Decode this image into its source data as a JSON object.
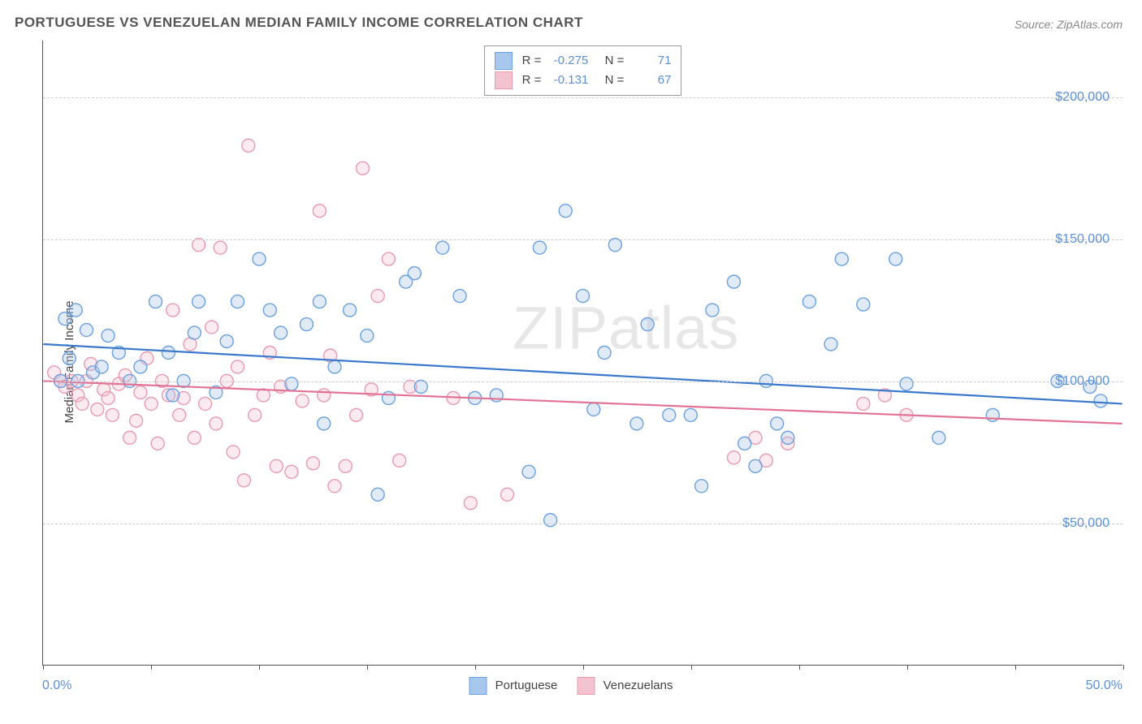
{
  "title": "PORTUGUESE VS VENEZUELAN MEDIAN FAMILY INCOME CORRELATION CHART",
  "source": "Source: ZipAtlas.com",
  "watermark": "ZIPatlas",
  "ylabel": "Median Family Income",
  "chart": {
    "type": "scatter",
    "xlim": [
      0,
      50
    ],
    "ylim": [
      0,
      220000
    ],
    "xmin_label": "0.0%",
    "xmax_label": "50.0%",
    "yticks": [
      50000,
      100000,
      150000,
      200000
    ],
    "ytick_labels": [
      "$50,000",
      "$100,000",
      "$150,000",
      "$200,000"
    ],
    "xtick_positions": [
      0,
      5,
      10,
      15,
      20,
      25,
      30,
      35,
      40,
      45,
      50
    ],
    "grid_color": "#cccccc",
    "background_color": "#ffffff",
    "marker_radius": 8,
    "marker_stroke_width": 1.4,
    "marker_fill_opacity": 0.35,
    "line_width": 2.2,
    "series": [
      {
        "name": "Portuguese",
        "color_stroke": "#6aa0e0",
        "color_fill": "#a8c7ec",
        "line_color": "#3a78cc",
        "R": "-0.275",
        "N": "71",
        "trend": {
          "y_at_xmin": 113000,
          "y_at_xmax": 92000
        },
        "points": [
          [
            1.0,
            122000
          ],
          [
            1.5,
            125000
          ],
          [
            2.0,
            118000
          ],
          [
            1.2,
            108000
          ],
          [
            2.3,
            103000
          ],
          [
            0.8,
            100000
          ],
          [
            1.6,
            100000
          ],
          [
            2.7,
            105000
          ],
          [
            3.0,
            116000
          ],
          [
            3.5,
            110000
          ],
          [
            4.0,
            100000
          ],
          [
            4.5,
            105000
          ],
          [
            5.2,
            128000
          ],
          [
            5.8,
            110000
          ],
          [
            6.0,
            95000
          ],
          [
            6.5,
            100000
          ],
          [
            7.0,
            117000
          ],
          [
            7.2,
            128000
          ],
          [
            8.0,
            96000
          ],
          [
            8.5,
            114000
          ],
          [
            9.0,
            128000
          ],
          [
            10.0,
            143000
          ],
          [
            10.5,
            125000
          ],
          [
            11.0,
            117000
          ],
          [
            11.5,
            99000
          ],
          [
            12.2,
            120000
          ],
          [
            12.8,
            128000
          ],
          [
            13.0,
            85000
          ],
          [
            13.5,
            105000
          ],
          [
            14.2,
            125000
          ],
          [
            15.0,
            116000
          ],
          [
            15.5,
            60000
          ],
          [
            16.0,
            94000
          ],
          [
            16.8,
            135000
          ],
          [
            17.2,
            138000
          ],
          [
            17.5,
            98000
          ],
          [
            18.5,
            147000
          ],
          [
            19.3,
            130000
          ],
          [
            20.0,
            94000
          ],
          [
            21.0,
            95000
          ],
          [
            22.5,
            68000
          ],
          [
            23.0,
            147000
          ],
          [
            23.5,
            51000
          ],
          [
            24.2,
            160000
          ],
          [
            25.0,
            130000
          ],
          [
            25.5,
            90000
          ],
          [
            26.0,
            110000
          ],
          [
            26.5,
            148000
          ],
          [
            27.5,
            85000
          ],
          [
            28.0,
            120000
          ],
          [
            29.0,
            88000
          ],
          [
            30.0,
            88000
          ],
          [
            30.5,
            63000
          ],
          [
            31.0,
            125000
          ],
          [
            32.0,
            135000
          ],
          [
            32.5,
            78000
          ],
          [
            33.0,
            70000
          ],
          [
            33.5,
            100000
          ],
          [
            34.0,
            85000
          ],
          [
            34.5,
            80000
          ],
          [
            35.5,
            128000
          ],
          [
            36.5,
            113000
          ],
          [
            37.0,
            143000
          ],
          [
            38.0,
            127000
          ],
          [
            39.5,
            143000
          ],
          [
            40.0,
            99000
          ],
          [
            41.5,
            80000
          ],
          [
            44.0,
            88000
          ],
          [
            47.0,
            100000
          ],
          [
            48.5,
            98000
          ],
          [
            49.0,
            93000
          ]
        ]
      },
      {
        "name": "Venezuelans",
        "color_stroke": "#e89ab0",
        "color_fill": "#f3c3d0",
        "line_color": "#e27395",
        "R": "-0.131",
        "N": "67",
        "trend": {
          "y_at_xmin": 100000,
          "y_at_xmax": 85000
        },
        "points": [
          [
            0.5,
            103000
          ],
          [
            0.8,
            100000
          ],
          [
            1.0,
            98000
          ],
          [
            1.3,
            100000
          ],
          [
            1.6,
            95000
          ],
          [
            1.8,
            92000
          ],
          [
            2.0,
            100000
          ],
          [
            2.2,
            106000
          ],
          [
            2.5,
            90000
          ],
          [
            2.8,
            97000
          ],
          [
            3.0,
            94000
          ],
          [
            3.2,
            88000
          ],
          [
            3.5,
            99000
          ],
          [
            3.8,
            102000
          ],
          [
            4.0,
            80000
          ],
          [
            4.3,
            86000
          ],
          [
            4.5,
            96000
          ],
          [
            4.8,
            108000
          ],
          [
            5.0,
            92000
          ],
          [
            5.3,
            78000
          ],
          [
            5.5,
            100000
          ],
          [
            5.8,
            95000
          ],
          [
            6.0,
            125000
          ],
          [
            6.3,
            88000
          ],
          [
            6.5,
            94000
          ],
          [
            6.8,
            113000
          ],
          [
            7.0,
            80000
          ],
          [
            7.2,
            148000
          ],
          [
            7.5,
            92000
          ],
          [
            7.8,
            119000
          ],
          [
            8.0,
            85000
          ],
          [
            8.2,
            147000
          ],
          [
            8.5,
            100000
          ],
          [
            8.8,
            75000
          ],
          [
            9.0,
            105000
          ],
          [
            9.3,
            65000
          ],
          [
            9.5,
            183000
          ],
          [
            9.8,
            88000
          ],
          [
            10.2,
            95000
          ],
          [
            10.5,
            110000
          ],
          [
            10.8,
            70000
          ],
          [
            11.0,
            98000
          ],
          [
            11.5,
            68000
          ],
          [
            12.0,
            93000
          ],
          [
            12.5,
            71000
          ],
          [
            12.8,
            160000
          ],
          [
            13.0,
            95000
          ],
          [
            13.3,
            109000
          ],
          [
            13.5,
            63000
          ],
          [
            14.0,
            70000
          ],
          [
            14.5,
            88000
          ],
          [
            14.8,
            175000
          ],
          [
            15.2,
            97000
          ],
          [
            15.5,
            130000
          ],
          [
            16.0,
            143000
          ],
          [
            16.5,
            72000
          ],
          [
            17.0,
            98000
          ],
          [
            19.0,
            94000
          ],
          [
            19.8,
            57000
          ],
          [
            21.5,
            60000
          ],
          [
            32.0,
            73000
          ],
          [
            33.0,
            80000
          ],
          [
            33.5,
            72000
          ],
          [
            34.5,
            78000
          ],
          [
            38.0,
            92000
          ],
          [
            39.0,
            95000
          ],
          [
            40.0,
            88000
          ]
        ]
      }
    ]
  },
  "legend_bottom": {
    "items": [
      {
        "label": "Portuguese",
        "fill": "#a8c7ec",
        "stroke": "#6aa0e0"
      },
      {
        "label": "Venezuelans",
        "fill": "#f3c3d0",
        "stroke": "#e89ab0"
      }
    ]
  },
  "legend_top": {
    "r_label": "R =",
    "n_label": "N ="
  }
}
